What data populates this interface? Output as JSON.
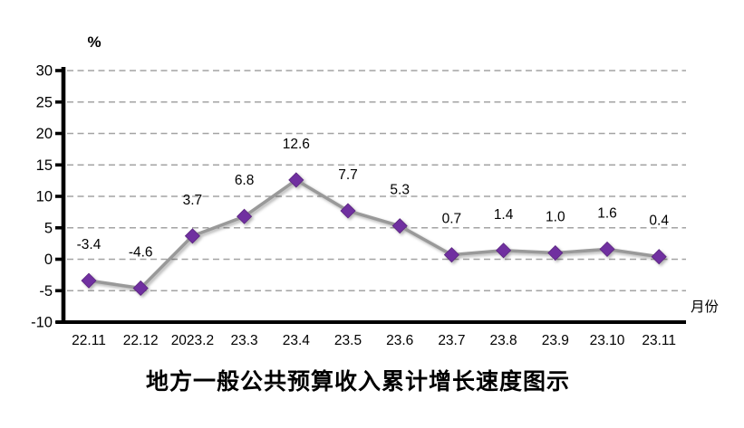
{
  "chart_data": {
    "type": "line",
    "title": "地方一般公共预算收入累计增长速度图示",
    "ylabel": "%",
    "xlabel": "月份",
    "categories": [
      "22.11",
      "22.12",
      "2023.2",
      "23.3",
      "23.4",
      "23.5",
      "23.6",
      "23.7",
      "23.8",
      "23.9",
      "23.10",
      "23.11"
    ],
    "values": [
      -3.4,
      -4.6,
      3.7,
      6.8,
      12.6,
      7.7,
      5.3,
      0.7,
      1.4,
      1.0,
      1.6,
      0.4
    ],
    "data_labels": [
      "-3.4",
      "-4.6",
      "3.7",
      "6.8",
      "12.6",
      "7.7",
      "5.3",
      "0.7",
      "1.4",
      "1.0",
      "1.6",
      "0.4"
    ],
    "yticks": [
      30,
      25,
      20,
      15,
      10,
      5,
      0,
      -5,
      -10
    ],
    "ylim": [
      -10,
      30
    ],
    "grid": "horizontal-dashed",
    "legend_position": "none",
    "marker": "diamond",
    "colors": {
      "marker": "#7030A0",
      "line": "#999999",
      "grid": "#A3A3A3",
      "axis": "#000000",
      "text": "#000000",
      "background": "#FFFFFF"
    }
  }
}
